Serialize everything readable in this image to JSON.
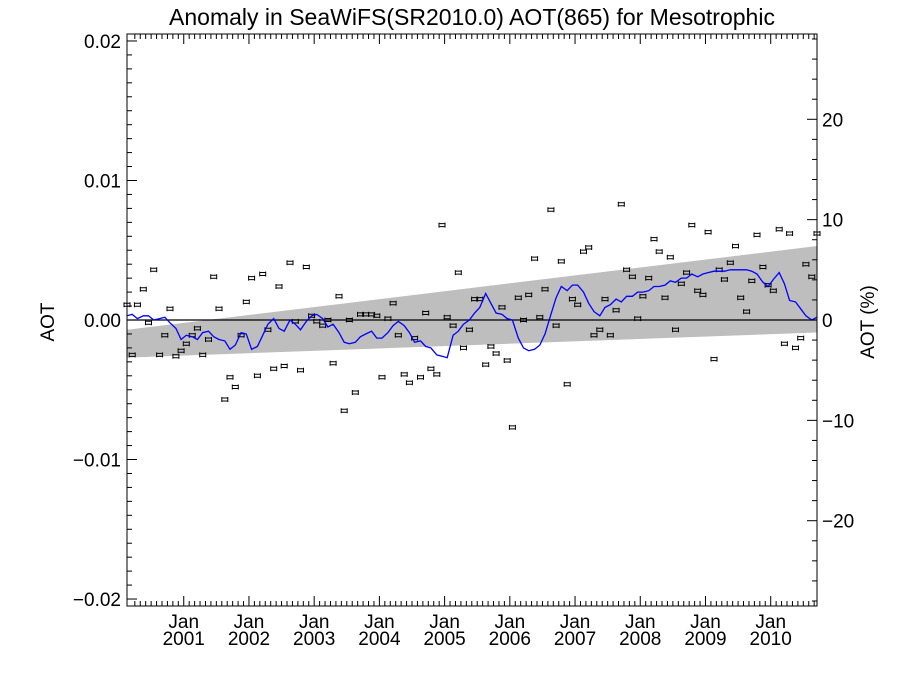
{
  "chart_data": {
    "type": "scatter",
    "title": "Anomaly in SeaWiFS(SR2010.0) AOT(865) for Mesotrophic",
    "ylabel": "AOT",
    "y2label": "AOT (%)",
    "xlim": [
      2000.13,
      2010.71
    ],
    "ylim": [
      -0.0205,
      0.0205
    ],
    "y2lim": [
      -28.5,
      28.5
    ],
    "ytick_values": [
      -0.02,
      -0.01,
      0.0,
      0.01,
      0.02
    ],
    "ytick_labels": [
      "−0.02",
      "−0.01",
      "0.00",
      "0.01",
      "0.02"
    ],
    "y2tick_values": [
      -20,
      -10,
      0,
      10,
      20
    ],
    "y2tick_labels": [
      "−20",
      "−10",
      "0",
      "10",
      "20"
    ],
    "xtick_values": [
      2001.0,
      2002.0,
      2003.0,
      2004.0,
      2005.0,
      2006.0,
      2007.0,
      2008.0,
      2009.0,
      2010.0
    ],
    "xtick_labels": [
      {
        "month": "Jan",
        "year": "2001"
      },
      {
        "month": "Jan",
        "year": "2002"
      },
      {
        "month": "Jan",
        "year": "2003"
      },
      {
        "month": "Jan",
        "year": "2004"
      },
      {
        "month": "Jan",
        "year": "2005"
      },
      {
        "month": "Jan",
        "year": "2006"
      },
      {
        "month": "Jan",
        "year": "2007"
      },
      {
        "month": "Jan",
        "year": "2008"
      },
      {
        "month": "Jan",
        "year": "2009"
      },
      {
        "month": "Jan",
        "year": "2010"
      }
    ],
    "zero_line": 0.0,
    "trend_band": {
      "x": [
        2000.13,
        2010.71
      ],
      "lower": [
        -0.0027,
        -0.0009
      ],
      "upper": [
        -0.0007,
        0.0053
      ]
    },
    "series": [
      {
        "type": "scatter",
        "color": "#000000",
        "x": [
          2000.13,
          2000.21,
          2000.29,
          2000.38,
          2000.46,
          2000.54,
          2000.63,
          2000.71,
          2000.79,
          2000.88,
          2000.96,
          2001.04,
          2001.13,
          2001.21,
          2001.29,
          2001.38,
          2001.46,
          2001.54,
          2001.63,
          2001.71,
          2001.79,
          2001.88,
          2001.96,
          2002.04,
          2002.13,
          2002.21,
          2002.29,
          2002.38,
          2002.46,
          2002.54,
          2002.63,
          2002.71,
          2002.79,
          2002.88,
          2002.96,
          2003.04,
          2003.13,
          2003.21,
          2003.29,
          2003.38,
          2003.46,
          2003.54,
          2003.63,
          2003.71,
          2003.79,
          2003.88,
          2003.96,
          2004.04,
          2004.13,
          2004.21,
          2004.29,
          2004.38,
          2004.46,
          2004.54,
          2004.63,
          2004.71,
          2004.79,
          2004.88,
          2004.96,
          2005.04,
          2005.13,
          2005.21,
          2005.29,
          2005.38,
          2005.46,
          2005.54,
          2005.63,
          2005.71,
          2005.79,
          2005.88,
          2005.96,
          2006.04,
          2006.13,
          2006.21,
          2006.29,
          2006.38,
          2006.46,
          2006.54,
          2006.63,
          2006.71,
          2006.79,
          2006.88,
          2006.96,
          2007.04,
          2007.13,
          2007.21,
          2007.29,
          2007.38,
          2007.46,
          2007.54,
          2007.63,
          2007.71,
          2007.79,
          2007.88,
          2007.96,
          2008.04,
          2008.13,
          2008.21,
          2008.29,
          2008.38,
          2008.46,
          2008.54,
          2008.63,
          2008.71,
          2008.79,
          2008.88,
          2008.96,
          2009.04,
          2009.13,
          2009.21,
          2009.29,
          2009.38,
          2009.46,
          2009.54,
          2009.63,
          2009.71,
          2009.79,
          2009.88,
          2009.96,
          2010.04,
          2010.13,
          2010.21,
          2010.29,
          2010.38,
          2010.46,
          2010.54,
          2010.63,
          2010.71
        ],
        "y": [
          0.0011,
          -0.0025,
          0.0011,
          0.0022,
          -0.0002,
          0.0036,
          -0.0025,
          -0.0011,
          0.0008,
          -0.0026,
          -0.0022,
          -0.0017,
          -0.0011,
          -0.0006,
          -0.0025,
          -0.0014,
          0.0031,
          0.0008,
          -0.0057,
          -0.0041,
          -0.0048,
          -0.0011,
          0.0013,
          0.003,
          -0.004,
          0.0033,
          -0.0007,
          -0.0035,
          0.0024,
          -0.0033,
          0.0041,
          -0.0001,
          -0.0036,
          0.0038,
          0.0003,
          -0.0001,
          -0.0004,
          0.0,
          -0.0031,
          0.0017,
          -0.0065,
          0.0,
          -0.0052,
          0.0004,
          0.0004,
          0.0004,
          0.0003,
          -0.0041,
          0.0001,
          0.0012,
          -0.0011,
          -0.0039,
          -0.0045,
          -0.0013,
          -0.0041,
          0.0005,
          -0.0035,
          -0.0039,
          0.0068,
          0.0002,
          -0.0004,
          0.0034,
          -0.002,
          -0.0007,
          0.0015,
          0.0015,
          -0.0032,
          -0.0019,
          -0.0024,
          0.0009,
          -0.0029,
          -0.0077,
          0.0016,
          0.0,
          0.0018,
          0.0044,
          0.0002,
          0.0022,
          0.0079,
          -0.0004,
          0.0042,
          -0.0046,
          0.0015,
          0.0011,
          0.0049,
          0.0052,
          -0.0011,
          -0.0007,
          0.0015,
          -0.0011,
          0.0007,
          0.0083,
          0.0036,
          0.0031,
          0.0001,
          0.0017,
          0.003,
          0.0058,
          0.0049,
          0.0016,
          0.0045,
          -0.0007,
          0.0026,
          0.0034,
          0.0068,
          0.0021,
          0.0018,
          0.0063,
          -0.0028,
          0.0036,
          0.0029,
          0.0041,
          0.0053,
          0.0016,
          0.0006,
          0.0028,
          0.0061,
          0.0038,
          0.0025,
          0.0021,
          0.0065,
          -0.0017,
          0.0062,
          -0.002,
          -0.0013,
          0.004,
          0.0031,
          0.0062
        ]
      },
      {
        "type": "line",
        "color": "#0000ff",
        "x": [
          2000.13,
          2000.21,
          2000.29,
          2000.38,
          2000.46,
          2000.54,
          2000.63,
          2000.71,
          2000.79,
          2000.88,
          2000.96,
          2001.04,
          2001.13,
          2001.21,
          2001.29,
          2001.38,
          2001.46,
          2001.54,
          2001.63,
          2001.71,
          2001.79,
          2001.88,
          2001.96,
          2002.04,
          2002.13,
          2002.21,
          2002.29,
          2002.38,
          2002.46,
          2002.54,
          2002.63,
          2002.71,
          2002.79,
          2002.88,
          2002.96,
          2003.04,
          2003.13,
          2003.21,
          2003.29,
          2003.38,
          2003.46,
          2003.54,
          2003.63,
          2003.71,
          2003.79,
          2003.88,
          2003.96,
          2004.04,
          2004.13,
          2004.21,
          2004.29,
          2004.38,
          2004.46,
          2004.54,
          2004.63,
          2004.71,
          2004.79,
          2004.88,
          2004.96,
          2005.04,
          2005.13,
          2005.21,
          2005.29,
          2005.38,
          2005.46,
          2005.54,
          2005.63,
          2005.71,
          2005.79,
          2005.88,
          2005.96,
          2006.04,
          2006.13,
          2006.21,
          2006.29,
          2006.38,
          2006.46,
          2006.54,
          2006.63,
          2006.71,
          2006.79,
          2006.88,
          2006.96,
          2007.04,
          2007.13,
          2007.21,
          2007.29,
          2007.38,
          2007.46,
          2007.54,
          2007.63,
          2007.71,
          2007.79,
          2007.88,
          2007.96,
          2008.04,
          2008.13,
          2008.21,
          2008.29,
          2008.38,
          2008.46,
          2008.54,
          2008.63,
          2008.71,
          2008.79,
          2008.88,
          2008.96,
          2009.04,
          2009.13,
          2009.21,
          2009.29,
          2009.38,
          2009.46,
          2009.54,
          2009.63,
          2009.71,
          2009.79,
          2009.88,
          2009.96,
          2010.04,
          2010.13,
          2010.21,
          2010.29,
          2010.38,
          2010.46,
          2010.54,
          2010.63,
          2010.71
        ],
        "y": [
          0.0003,
          0.0004,
          0.0001,
          0.0003,
          0.0003,
          0.0,
          0.0001,
          0.0002,
          -0.0002,
          -0.0006,
          -0.0014,
          -0.0011,
          -0.0012,
          -0.0014,
          -0.0009,
          -0.0008,
          -0.0012,
          -0.0014,
          -0.0015,
          -0.0021,
          -0.0018,
          -0.0009,
          -0.001,
          -0.0021,
          -0.0019,
          -0.0011,
          -0.0003,
          0.0001,
          -0.0006,
          -0.0008,
          0.0,
          -0.0003,
          -0.0007,
          -0.0001,
          0.0003,
          0.0004,
          0.0001,
          -0.0005,
          -0.0003,
          -0.0009,
          -0.0016,
          -0.0017,
          -0.0016,
          -0.0012,
          -0.001,
          -0.0008,
          -0.0013,
          -0.0013,
          -0.0009,
          -0.0004,
          -0.0001,
          -0.0004,
          -0.0009,
          -0.0016,
          -0.0015,
          -0.0019,
          -0.002,
          -0.0025,
          -0.0026,
          -0.0027,
          -0.0011,
          -0.0008,
          -0.0003,
          0.0,
          0.0005,
          0.0009,
          0.0019,
          0.0012,
          0.0005,
          0.0004,
          0.0001,
          0.0,
          -0.0013,
          -0.002,
          -0.0022,
          -0.0021,
          -0.0018,
          -0.001,
          0.0004,
          0.0016,
          0.0024,
          0.0021,
          0.0025,
          0.0025,
          0.002,
          0.0012,
          0.0006,
          0.0003,
          0.0009,
          0.0011,
          0.0015,
          0.0013,
          0.0017,
          0.0017,
          0.002,
          0.002,
          0.0021,
          0.0024,
          0.0024,
          0.0025,
          0.0028,
          0.0027,
          0.003,
          0.003,
          0.0033,
          0.0031,
          0.0033,
          0.0034,
          0.0035,
          0.0035,
          0.0035,
          0.0036,
          0.0036,
          0.0036,
          0.0036,
          0.0035,
          0.0033,
          0.0027,
          0.0024,
          0.0029,
          0.0034,
          0.0026,
          0.0014,
          0.0013,
          0.0008,
          0.0003,
          0.0,
          0.0002
        ]
      }
    ]
  }
}
